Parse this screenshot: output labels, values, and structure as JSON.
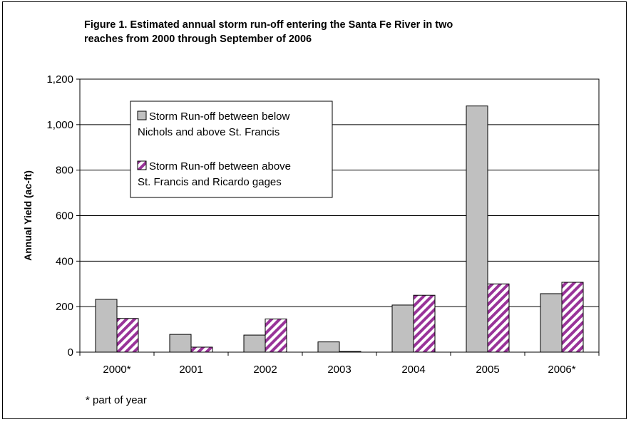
{
  "chart_data": {
    "type": "bar",
    "title": "Figure 1.  Estimated annual storm run-off entering the Santa Fe River in two\nreaches from 2000 through September of 2006",
    "xlabel": "",
    "ylabel": "Annual Yield (ac-ft)",
    "ylim": [
      0,
      1200
    ],
    "yticks": [
      0,
      200,
      400,
      600,
      800,
      1000,
      1200
    ],
    "ytick_labels": [
      "0",
      "200",
      "400",
      "600",
      "800",
      "1,000",
      "1,200"
    ],
    "categories": [
      "2000*",
      "2001",
      "2002",
      "2003",
      "2004",
      "2005",
      "2006*"
    ],
    "series": [
      {
        "name": "Storm Run-off between below\nNichols and above St. Francis",
        "values": [
          232,
          78,
          75,
          45,
          207,
          1082,
          257
        ],
        "color": "#c0c0c0",
        "pattern": "solid"
      },
      {
        "name": "Storm Run-off between above\nSt. Francis and Ricardo gages",
        "values": [
          148,
          22,
          146,
          3,
          250,
          300,
          307
        ],
        "color": "#993399",
        "pattern": "diagonal-stripes"
      }
    ],
    "grid": true,
    "legend_position": "upper-left",
    "footnote": "* part of year"
  }
}
